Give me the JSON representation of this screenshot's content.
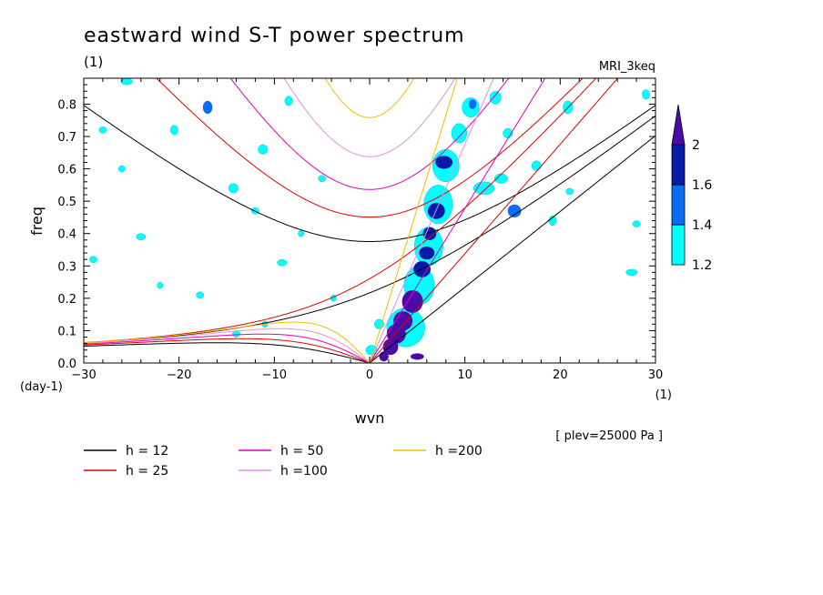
{
  "chart_data": {
    "type": "heatmap",
    "title": "eastward wind S-T power spectrum",
    "subtitle_left": "(1)",
    "subtitle_right": "MRI_3keq",
    "xlabel": "wvn",
    "ylabel": "freq",
    "xunit": "(1)",
    "yunit": "(day-1)",
    "annotation": "[ plev=25000 Pa ]",
    "xlim": [
      -30,
      30
    ],
    "ylim": [
      0,
      0.88
    ],
    "xticks": [
      -30,
      -20,
      -10,
      0,
      10,
      20,
      30
    ],
    "yticks": [
      0.0,
      0.1,
      0.2,
      0.3,
      0.4,
      0.5,
      0.6,
      0.7,
      0.8
    ],
    "colorbar": {
      "levels": [
        1.2,
        1.4,
        1.6,
        2
      ],
      "colors": [
        "#00ffff",
        "#0a6cf5",
        "#0a1aa8",
        "#4a0ca8"
      ]
    },
    "dispersion_curves": [
      {
        "label": "h = 12",
        "h": 12,
        "color": "#000000"
      },
      {
        "label": "h = 25",
        "h": 25,
        "color": "#e00000"
      },
      {
        "label": "h = 50",
        "h": 50,
        "color": "#e000c0"
      },
      {
        "label": "h =100",
        "h": 100,
        "color": "#e090e0"
      },
      {
        "label": "h =200",
        "h": 200,
        "color": "#f0c000"
      }
    ],
    "contour_blobs": [
      {
        "x": 1.5,
        "y": 0.02,
        "w": 1.0,
        "h": 0.03,
        "lv": 3
      },
      {
        "x": 2.2,
        "y": 0.05,
        "w": 1.6,
        "h": 0.05,
        "lv": 3
      },
      {
        "x": 2.8,
        "y": 0.09,
        "w": 2.0,
        "h": 0.06,
        "lv": 3
      },
      {
        "x": 3.5,
        "y": 0.13,
        "w": 2.0,
        "h": 0.06,
        "lv": 3
      },
      {
        "x": 4.5,
        "y": 0.19,
        "w": 2.2,
        "h": 0.07,
        "lv": 3
      },
      {
        "x": 5.0,
        "y": 0.02,
        "w": 1.4,
        "h": 0.02,
        "lv": 3
      },
      {
        "x": 5.5,
        "y": 0.29,
        "w": 1.8,
        "h": 0.05,
        "lv": 2
      },
      {
        "x": 6.0,
        "y": 0.34,
        "w": 1.6,
        "h": 0.04,
        "lv": 2
      },
      {
        "x": 6.3,
        "y": 0.4,
        "w": 1.4,
        "h": 0.04,
        "lv": 2
      },
      {
        "x": 7.0,
        "y": 0.47,
        "w": 1.8,
        "h": 0.05,
        "lv": 2
      },
      {
        "x": 7.8,
        "y": 0.62,
        "w": 1.8,
        "h": 0.04,
        "lv": 2
      },
      {
        "x": 10.8,
        "y": 0.8,
        "w": 0.8,
        "h": 0.03,
        "lv": 1
      },
      {
        "x": 3.8,
        "y": 0.11,
        "w": 4.0,
        "h": 0.12,
        "lv": 0
      },
      {
        "x": 5.2,
        "y": 0.24,
        "w": 3.2,
        "h": 0.12,
        "lv": 0
      },
      {
        "x": 6.2,
        "y": 0.36,
        "w": 3.0,
        "h": 0.12,
        "lv": 0
      },
      {
        "x": 7.2,
        "y": 0.49,
        "w": 3.0,
        "h": 0.12,
        "lv": 0
      },
      {
        "x": 8.0,
        "y": 0.61,
        "w": 2.8,
        "h": 0.1,
        "lv": 0
      },
      {
        "x": 9.4,
        "y": 0.71,
        "w": 1.6,
        "h": 0.06,
        "lv": 0
      },
      {
        "x": 10.6,
        "y": 0.79,
        "w": 1.8,
        "h": 0.06,
        "lv": 0
      },
      {
        "x": 12.0,
        "y": 0.54,
        "w": 2.2,
        "h": 0.04,
        "lv": 0
      },
      {
        "x": 13.8,
        "y": 0.57,
        "w": 1.4,
        "h": 0.03,
        "lv": 0
      },
      {
        "x": 15.2,
        "y": 0.47,
        "w": 1.4,
        "h": 0.04,
        "lv": 1
      },
      {
        "x": 14.5,
        "y": 0.71,
        "w": 1.0,
        "h": 0.03,
        "lv": 0
      },
      {
        "x": 13.2,
        "y": 0.82,
        "w": 1.2,
        "h": 0.04,
        "lv": 0
      },
      {
        "x": 20.8,
        "y": 0.79,
        "w": 1.0,
        "h": 0.04,
        "lv": 0
      },
      {
        "x": 17.5,
        "y": 0.61,
        "w": 1.0,
        "h": 0.03,
        "lv": 0
      },
      {
        "x": 19.2,
        "y": 0.44,
        "w": 0.8,
        "h": 0.03,
        "lv": 0
      },
      {
        "x": 21.0,
        "y": 0.53,
        "w": 0.8,
        "h": 0.02,
        "lv": 0
      },
      {
        "x": 27.5,
        "y": 0.28,
        "w": 1.2,
        "h": 0.02,
        "lv": 0
      },
      {
        "x": 28.0,
        "y": 0.43,
        "w": 0.8,
        "h": 0.02,
        "lv": 0
      },
      {
        "x": 29.0,
        "y": 0.83,
        "w": 0.8,
        "h": 0.03,
        "lv": 0
      },
      {
        "x": -17.0,
        "y": 0.79,
        "w": 1.0,
        "h": 0.04,
        "lv": 1
      },
      {
        "x": -20.5,
        "y": 0.72,
        "w": 0.8,
        "h": 0.03,
        "lv": 0
      },
      {
        "x": -14.3,
        "y": 0.54,
        "w": 1.0,
        "h": 0.03,
        "lv": 0
      },
      {
        "x": -11.2,
        "y": 0.66,
        "w": 1.0,
        "h": 0.03,
        "lv": 0
      },
      {
        "x": -8.5,
        "y": 0.81,
        "w": 0.8,
        "h": 0.03,
        "lv": 0
      },
      {
        "x": -24.0,
        "y": 0.39,
        "w": 1.0,
        "h": 0.02,
        "lv": 0
      },
      {
        "x": -28.0,
        "y": 0.72,
        "w": 0.8,
        "h": 0.02,
        "lv": 0
      },
      {
        "x": -25.5,
        "y": 0.87,
        "w": 1.2,
        "h": 0.02,
        "lv": 0
      },
      {
        "x": -9.2,
        "y": 0.31,
        "w": 1.0,
        "h": 0.02,
        "lv": 0
      },
      {
        "x": -14.0,
        "y": 0.09,
        "w": 0.8,
        "h": 0.02,
        "lv": 0
      },
      {
        "x": -17.8,
        "y": 0.21,
        "w": 0.8,
        "h": 0.02,
        "lv": 0
      },
      {
        "x": -22.0,
        "y": 0.24,
        "w": 0.6,
        "h": 0.02,
        "lv": 0
      },
      {
        "x": -5.0,
        "y": 0.57,
        "w": 0.8,
        "h": 0.02,
        "lv": 0
      },
      {
        "x": -12.0,
        "y": 0.47,
        "w": 0.8,
        "h": 0.02,
        "lv": 0
      },
      {
        "x": -29.0,
        "y": 0.32,
        "w": 0.8,
        "h": 0.02,
        "lv": 0
      },
      {
        "x": -7.2,
        "y": 0.4,
        "w": 0.6,
        "h": 0.02,
        "lv": 0
      },
      {
        "x": -26.0,
        "y": 0.6,
        "w": 0.7,
        "h": 0.02,
        "lv": 0
      },
      {
        "x": -3.8,
        "y": 0.2,
        "w": 0.6,
        "h": 0.02,
        "lv": 0
      },
      {
        "x": -11.0,
        "y": 0.12,
        "w": 0.6,
        "h": 0.02,
        "lv": 0
      },
      {
        "x": 0.2,
        "y": 0.04,
        "w": 1.2,
        "h": 0.03,
        "lv": 0
      },
      {
        "x": 1.0,
        "y": 0.12,
        "w": 1.0,
        "h": 0.03,
        "lv": 0
      }
    ]
  }
}
